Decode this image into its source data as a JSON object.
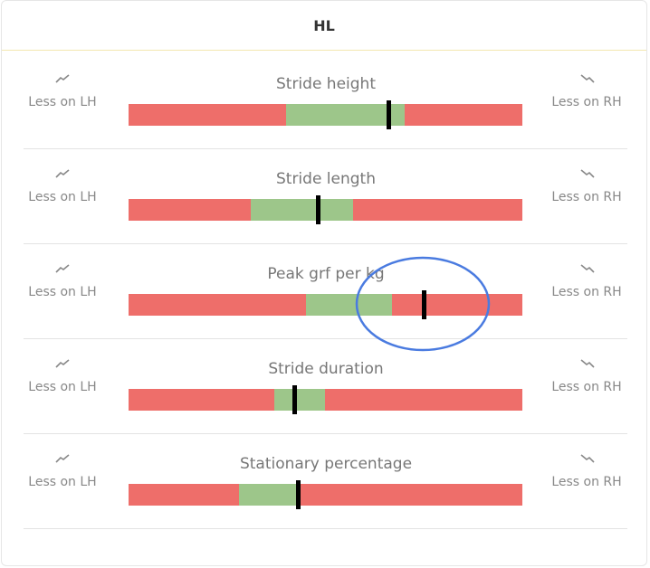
{
  "header": {
    "title": "HL"
  },
  "rows": [
    {
      "title": "Stride height",
      "left_label": "Less on LH",
      "right_label": "Less on RH",
      "normal_range": [
        40,
        70
      ],
      "value": 66
    },
    {
      "title": "Stride length",
      "left_label": "Less on LH",
      "right_label": "Less on RH",
      "normal_range": [
        31,
        57
      ],
      "value": 48
    },
    {
      "title": "Peak grf per kg",
      "left_label": "Less on LH",
      "right_label": "Less on RH",
      "normal_range": [
        45,
        67
      ],
      "value": 75
    },
    {
      "title": "Stride duration",
      "left_label": "Less on LH",
      "right_label": "Less on RH",
      "normal_range": [
        37,
        50
      ],
      "value": 42
    },
    {
      "title": "Stationary percentage",
      "left_label": "Less on LH",
      "right_label": "Less on RH",
      "normal_range": [
        28,
        43
      ],
      "value": 43
    }
  ]
}
